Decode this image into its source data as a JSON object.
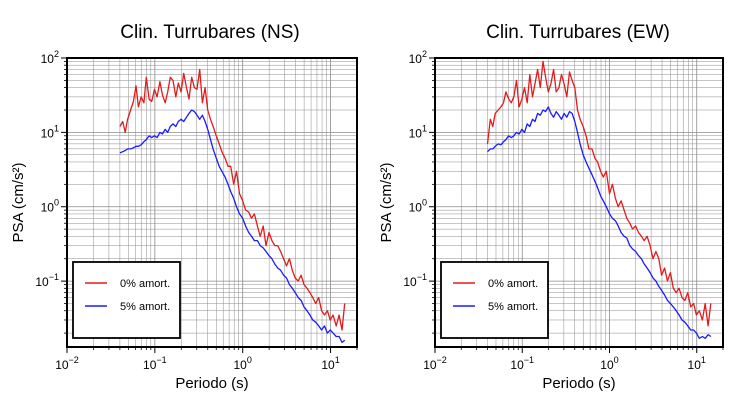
{
  "colors": {
    "series_0": "#e41a1c",
    "series_5": "#1a1aff",
    "grid": "#8c8c8c",
    "frame": "#000000"
  },
  "chart_data": [
    {
      "type": "line",
      "title": "Clin. Turrubares (NS)",
      "xlabel": "Periodo (s)",
      "ylabel": "PSA (cm/s²)",
      "xscale": "log",
      "yscale": "log",
      "xlim": [
        0.01,
        20
      ],
      "ylim": [
        0.013,
        100
      ],
      "x_ticks": [
        {
          "value": 0.01,
          "base": "10",
          "exp": "−2"
        },
        {
          "value": 0.1,
          "base": "10",
          "exp": "−1"
        },
        {
          "value": 1,
          "base": "10",
          "exp": "0"
        },
        {
          "value": 10,
          "base": "10",
          "exp": "1"
        }
      ],
      "y_ticks": [
        {
          "value": 0.1,
          "base": "10",
          "exp": "−1"
        },
        {
          "value": 1,
          "base": "10",
          "exp": "0"
        },
        {
          "value": 10,
          "base": "10",
          "exp": "1"
        },
        {
          "value": 100,
          "base": "10",
          "exp": "2"
        }
      ],
      "grid": true,
      "legend_position": "bottom-left",
      "series": [
        {
          "name": "0% amort.",
          "color": "#e41a1c",
          "x": [
            0.04,
            0.043,
            0.046,
            0.049,
            0.053,
            0.057,
            0.061,
            0.065,
            0.07,
            0.075,
            0.08,
            0.086,
            0.092,
            0.099,
            0.106,
            0.114,
            0.122,
            0.131,
            0.14,
            0.15,
            0.161,
            0.173,
            0.185,
            0.199,
            0.213,
            0.229,
            0.245,
            0.263,
            0.282,
            0.302,
            0.324,
            0.348,
            0.373,
            0.4,
            0.43,
            0.46,
            0.5,
            0.54,
            0.58,
            0.63,
            0.68,
            0.73,
            0.79,
            0.85,
            0.92,
            1.0,
            1.08,
            1.17,
            1.26,
            1.36,
            1.47,
            1.58,
            1.71,
            1.84,
            1.99,
            2.15,
            2.32,
            2.5,
            2.7,
            2.92,
            3.15,
            3.4,
            3.67,
            3.96,
            4.28,
            4.62,
            4.99,
            5.39,
            5.82,
            6.28,
            6.78,
            7.32,
            7.9,
            8.53,
            9.2,
            9.9,
            10.7,
            11.6,
            12.5,
            13.5,
            14.5
          ],
          "y": [
            12,
            14,
            10,
            15,
            20,
            26,
            42,
            22,
            30,
            25,
            55,
            28,
            26,
            38,
            30,
            48,
            32,
            25,
            35,
            55,
            50,
            30,
            46,
            35,
            62,
            40,
            28,
            55,
            40,
            38,
            70,
            25,
            40,
            20,
            15,
            12,
            9,
            7,
            5.5,
            4.5,
            3.5,
            3.5,
            2.0,
            3.0,
            1.5,
            1.2,
            0.9,
            0.85,
            0.7,
            0.8,
            0.55,
            0.4,
            0.55,
            0.3,
            0.45,
            0.35,
            0.3,
            0.3,
            0.25,
            0.2,
            0.16,
            0.2,
            0.14,
            0.11,
            0.1,
            0.12,
            0.09,
            0.08,
            0.07,
            0.06,
            0.05,
            0.06,
            0.04,
            0.035,
            0.04,
            0.03,
            0.035,
            0.025,
            0.035,
            0.022,
            0.05
          ]
        },
        {
          "name": "5% amort.",
          "color": "#1a1aff",
          "x": [
            0.04,
            0.043,
            0.046,
            0.049,
            0.053,
            0.057,
            0.061,
            0.065,
            0.07,
            0.075,
            0.08,
            0.086,
            0.092,
            0.099,
            0.106,
            0.114,
            0.122,
            0.131,
            0.14,
            0.15,
            0.161,
            0.173,
            0.185,
            0.199,
            0.213,
            0.229,
            0.245,
            0.263,
            0.282,
            0.302,
            0.324,
            0.348,
            0.373,
            0.4,
            0.43,
            0.46,
            0.5,
            0.54,
            0.58,
            0.63,
            0.68,
            0.73,
            0.79,
            0.85,
            0.92,
            1.0,
            1.08,
            1.17,
            1.26,
            1.36,
            1.47,
            1.58,
            1.71,
            1.84,
            1.99,
            2.15,
            2.32,
            2.5,
            2.7,
            2.92,
            3.15,
            3.4,
            3.67,
            3.96,
            4.28,
            4.62,
            4.99,
            5.39,
            5.82,
            6.28,
            6.78,
            7.32,
            7.9,
            8.53,
            9.2,
            9.9,
            10.7,
            11.6,
            12.5,
            13.5,
            14.5
          ],
          "y": [
            5.3,
            5.5,
            5.7,
            6,
            6,
            6.2,
            6.5,
            6.5,
            6.8,
            7.5,
            8,
            9,
            8.5,
            9,
            8.5,
            10,
            9.5,
            11,
            10,
            12,
            13,
            12,
            14,
            15,
            14,
            16,
            18,
            20,
            19,
            17,
            15,
            17,
            14,
            11,
            8,
            6,
            4.5,
            3.5,
            3.0,
            2.5,
            2.0,
            1.6,
            1.3,
            1.0,
            0.8,
            0.7,
            0.55,
            0.45,
            0.4,
            0.35,
            0.35,
            0.3,
            0.28,
            0.25,
            0.22,
            0.2,
            0.17,
            0.15,
            0.14,
            0.12,
            0.11,
            0.09,
            0.08,
            0.07,
            0.06,
            0.055,
            0.045,
            0.04,
            0.035,
            0.03,
            0.028,
            0.025,
            0.022,
            0.025,
            0.02,
            0.022,
            0.02,
            0.018,
            0.018,
            0.015,
            0.016
          ]
        }
      ]
    },
    {
      "type": "line",
      "title": "Clin. Turrubares (EW)",
      "xlabel": "Periodo (s)",
      "ylabel": "PSA (cm/s²)",
      "xscale": "log",
      "yscale": "log",
      "xlim": [
        0.01,
        20
      ],
      "ylim": [
        0.013,
        100
      ],
      "x_ticks": [
        {
          "value": 0.01,
          "base": "10",
          "exp": "−2"
        },
        {
          "value": 0.1,
          "base": "10",
          "exp": "−1"
        },
        {
          "value": 1,
          "base": "10",
          "exp": "0"
        },
        {
          "value": 10,
          "base": "10",
          "exp": "1"
        }
      ],
      "y_ticks": [
        {
          "value": 0.1,
          "base": "10",
          "exp": "−1"
        },
        {
          "value": 1,
          "base": "10",
          "exp": "0"
        },
        {
          "value": 10,
          "base": "10",
          "exp": "1"
        },
        {
          "value": 100,
          "base": "10",
          "exp": "2"
        }
      ],
      "grid": true,
      "legend_position": "bottom-left",
      "series": [
        {
          "name": "0% amort.",
          "color": "#e41a1c",
          "x": [
            0.04,
            0.043,
            0.046,
            0.049,
            0.053,
            0.057,
            0.061,
            0.065,
            0.07,
            0.075,
            0.08,
            0.086,
            0.092,
            0.099,
            0.106,
            0.114,
            0.122,
            0.131,
            0.14,
            0.15,
            0.161,
            0.173,
            0.185,
            0.199,
            0.213,
            0.229,
            0.245,
            0.263,
            0.282,
            0.302,
            0.324,
            0.348,
            0.373,
            0.4,
            0.43,
            0.46,
            0.5,
            0.54,
            0.58,
            0.63,
            0.68,
            0.73,
            0.79,
            0.85,
            0.92,
            1.0,
            1.08,
            1.17,
            1.26,
            1.36,
            1.47,
            1.58,
            1.71,
            1.84,
            1.99,
            2.15,
            2.32,
            2.5,
            2.7,
            2.92,
            3.15,
            3.4,
            3.67,
            3.96,
            4.28,
            4.62,
            4.99,
            5.39,
            5.82,
            6.28,
            6.78,
            7.32,
            7.9,
            8.53,
            9.2,
            9.9,
            10.7,
            11.6,
            12.5,
            13.5,
            14.5
          ],
          "y": [
            7,
            15,
            12,
            18,
            20,
            22,
            25,
            35,
            28,
            25,
            30,
            50,
            22,
            28,
            40,
            25,
            60,
            30,
            45,
            70,
            40,
            90,
            55,
            35,
            45,
            70,
            35,
            40,
            60,
            45,
            30,
            65,
            50,
            40,
            20,
            15,
            12,
            9,
            6,
            6,
            4.5,
            4,
            3,
            2.5,
            3,
            1.5,
            2,
            1.3,
            1.0,
            1.2,
            0.9,
            0.7,
            0.6,
            0.5,
            0.55,
            0.45,
            0.4,
            0.35,
            0.4,
            0.3,
            0.2,
            0.25,
            0.2,
            0.12,
            0.15,
            0.1,
            0.13,
            0.08,
            0.07,
            0.08,
            0.06,
            0.055,
            0.07,
            0.045,
            0.05,
            0.035,
            0.04,
            0.03,
            0.05,
            0.025,
            0.05
          ]
        },
        {
          "name": "5% amort.",
          "color": "#1a1aff",
          "x": [
            0.04,
            0.043,
            0.046,
            0.049,
            0.053,
            0.057,
            0.061,
            0.065,
            0.07,
            0.075,
            0.08,
            0.086,
            0.092,
            0.099,
            0.106,
            0.114,
            0.122,
            0.131,
            0.14,
            0.15,
            0.161,
            0.173,
            0.185,
            0.199,
            0.213,
            0.229,
            0.245,
            0.263,
            0.282,
            0.302,
            0.324,
            0.348,
            0.373,
            0.4,
            0.43,
            0.46,
            0.5,
            0.54,
            0.58,
            0.63,
            0.68,
            0.73,
            0.79,
            0.85,
            0.92,
            1.0,
            1.08,
            1.17,
            1.26,
            1.36,
            1.47,
            1.58,
            1.71,
            1.84,
            1.99,
            2.15,
            2.32,
            2.5,
            2.7,
            2.92,
            3.15,
            3.4,
            3.67,
            3.96,
            4.28,
            4.62,
            4.99,
            5.39,
            5.82,
            6.28,
            6.78,
            7.32,
            7.9,
            8.53,
            9.2,
            9.9,
            10.7,
            11.6,
            12.5,
            13.5,
            14.5
          ],
          "y": [
            5.5,
            6,
            6,
            6.5,
            7,
            6.8,
            7.5,
            8,
            9,
            8.5,
            9,
            10,
            9.5,
            11,
            10,
            13,
            12,
            15,
            14,
            18,
            17,
            20,
            19,
            22,
            18,
            16,
            19,
            17,
            15,
            18,
            16,
            19,
            18,
            14,
            10,
            7,
            5,
            4,
            3.3,
            2.7,
            2.2,
            1.8,
            1.4,
            1.2,
            1.0,
            0.8,
            0.7,
            0.65,
            0.55,
            0.45,
            0.4,
            0.38,
            0.3,
            0.27,
            0.25,
            0.22,
            0.2,
            0.17,
            0.15,
            0.13,
            0.11,
            0.1,
            0.085,
            0.075,
            0.065,
            0.055,
            0.05,
            0.045,
            0.04,
            0.035,
            0.03,
            0.028,
            0.025,
            0.022,
            0.022,
            0.02,
            0.017,
            0.018,
            0.017,
            0.019,
            0.018
          ]
        }
      ]
    }
  ]
}
